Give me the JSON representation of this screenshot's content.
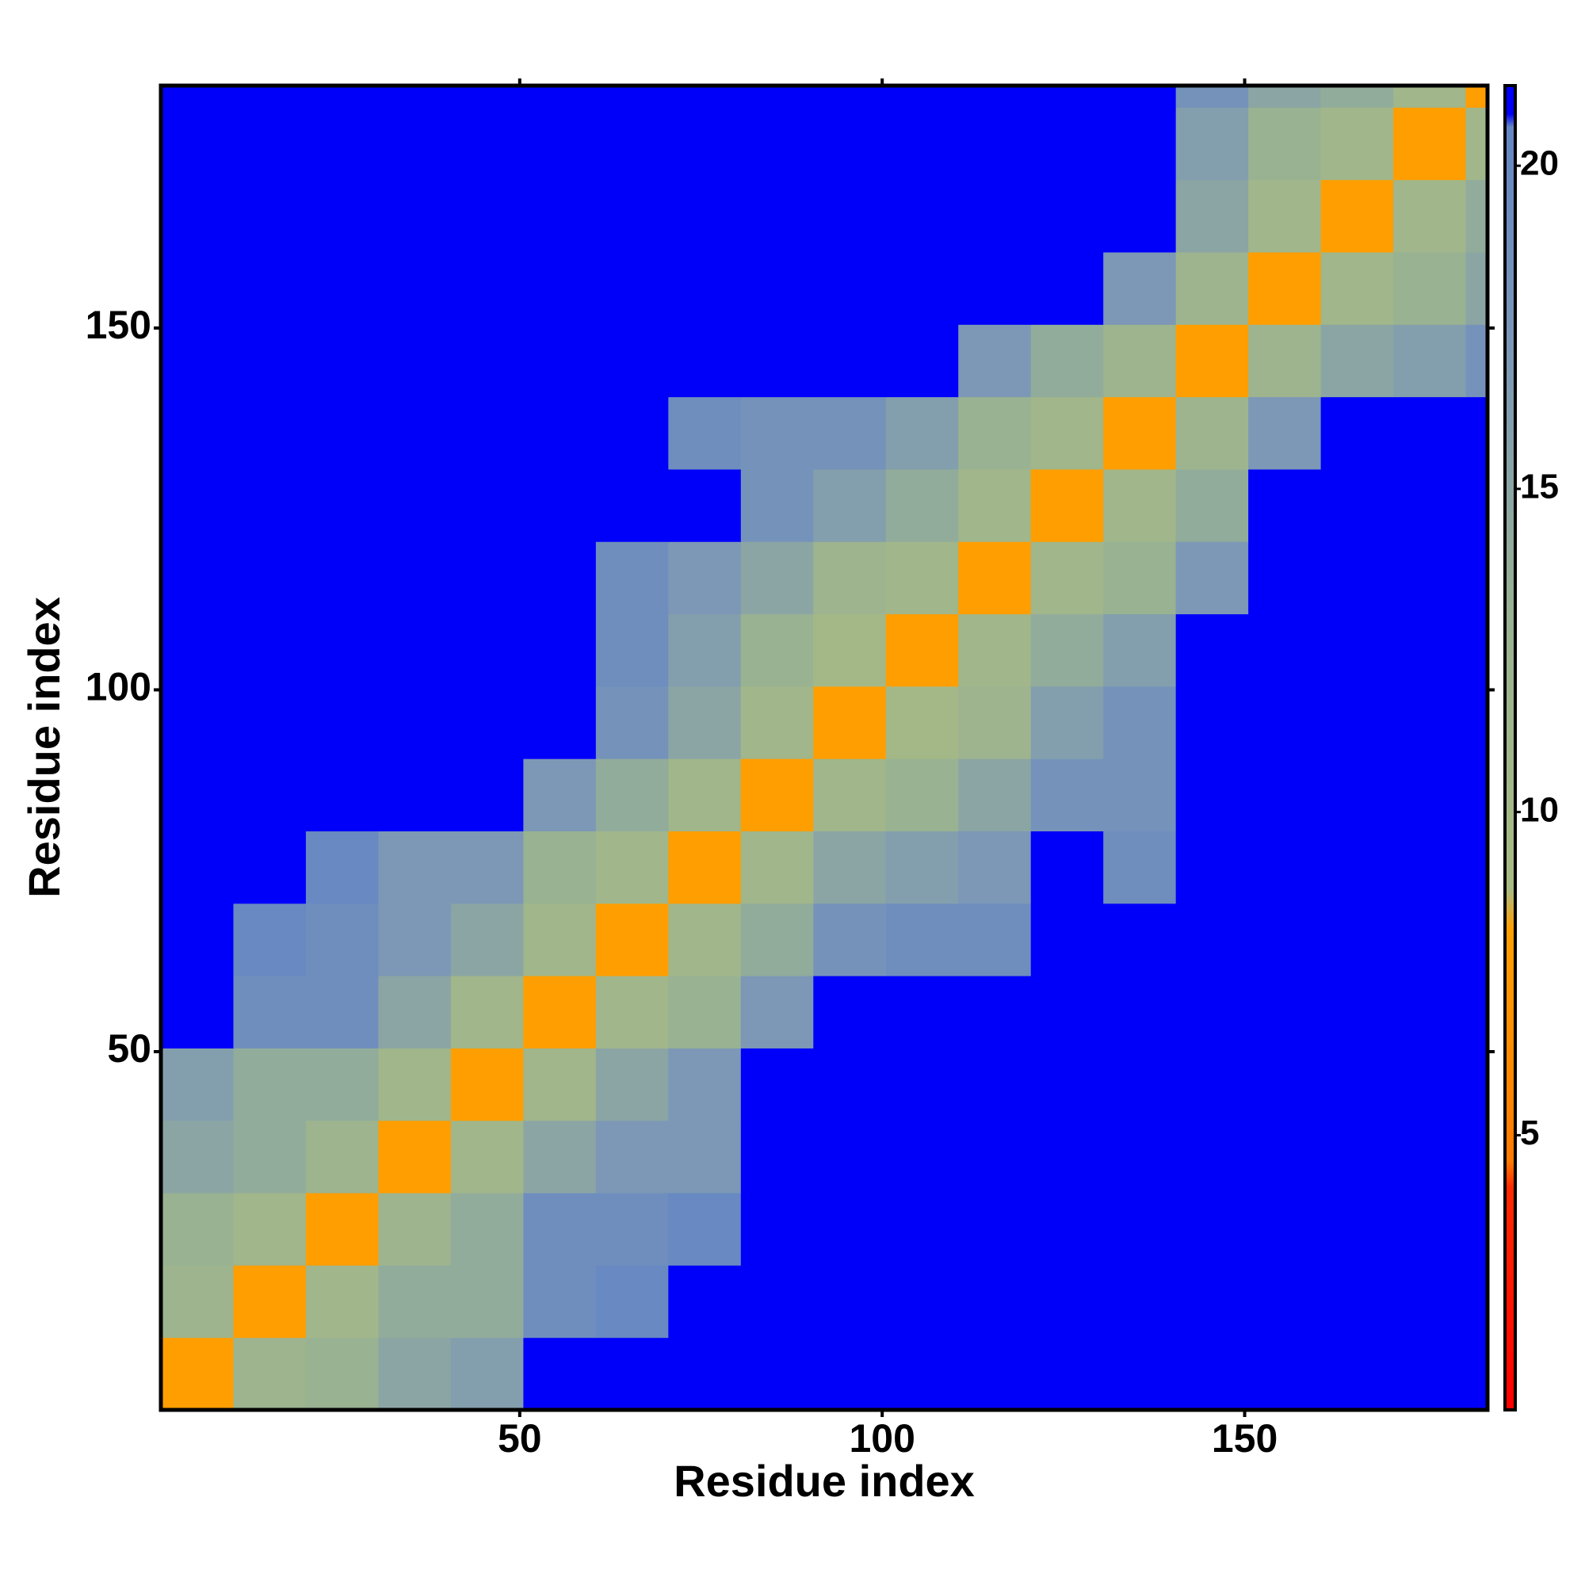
{
  "chart_data": {
    "type": "heatmap",
    "xlabel": "Residue index",
    "ylabel": "Residue index",
    "xlim": [
      0.5,
      183.5
    ],
    "ylim": [
      0.5,
      183.5
    ],
    "xticks": [
      50,
      100,
      150
    ],
    "yticks": [
      50,
      100,
      150
    ],
    "xbins": [
      0.5,
      10.5,
      20.5,
      30.5,
      40.5,
      50.5,
      60.5,
      70.5,
      80.5,
      90.5,
      100.5,
      110.5,
      120.5,
      130.5,
      140.5,
      150.5,
      160.5,
      170.5,
      180.5,
      183.5
    ],
    "ybins": [
      0.5,
      10.5,
      20.5,
      30.5,
      40.5,
      50.5,
      60.5,
      70.5,
      80.5,
      90.5,
      100.5,
      110.5,
      120.5,
      130.5,
      140.5,
      150.5,
      160.5,
      170.5,
      180.5,
      183.5
    ],
    "z": [
      [
        8,
        12,
        13,
        15,
        16,
        21,
        21,
        21,
        21,
        21,
        21,
        21,
        21,
        21,
        21,
        21,
        21,
        21,
        21
      ],
      [
        12,
        8,
        11,
        14,
        14,
        19,
        20,
        21,
        21,
        21,
        21,
        21,
        21,
        21,
        21,
        21,
        21,
        21,
        21
      ],
      [
        13,
        11,
        8,
        12,
        14,
        19,
        19,
        20,
        21,
        21,
        21,
        21,
        21,
        21,
        21,
        21,
        21,
        21,
        21
      ],
      [
        15,
        14,
        12,
        8,
        11,
        15,
        17,
        17,
        21,
        21,
        21,
        21,
        21,
        21,
        21,
        21,
        21,
        21,
        21
      ],
      [
        16,
        14,
        14,
        11,
        8,
        11,
        15,
        17,
        21,
        21,
        21,
        21,
        21,
        21,
        21,
        21,
        21,
        21,
        21
      ],
      [
        21,
        19,
        19,
        15,
        11,
        8,
        11,
        13,
        17,
        21,
        21,
        21,
        21,
        21,
        21,
        21,
        21,
        21,
        21
      ],
      [
        21,
        20,
        19,
        17,
        15,
        11,
        8,
        11,
        14,
        18,
        19,
        19,
        21,
        21,
        21,
        21,
        21,
        21,
        21
      ],
      [
        21,
        21,
        20,
        17,
        17,
        13,
        11,
        8,
        11,
        15,
        16,
        17,
        21,
        19,
        21,
        21,
        21,
        21,
        21
      ],
      [
        21,
        21,
        21,
        21,
        21,
        17,
        14,
        11,
        8,
        11,
        13,
        15,
        18,
        18,
        21,
        21,
        21,
        21,
        21
      ],
      [
        21,
        21,
        21,
        21,
        21,
        21,
        18,
        15,
        11,
        8,
        10,
        12,
        16,
        18,
        21,
        21,
        21,
        21,
        21
      ],
      [
        21,
        21,
        21,
        21,
        21,
        21,
        19,
        16,
        13,
        10,
        8,
        11,
        14,
        16,
        21,
        21,
        21,
        21,
        21
      ],
      [
        21,
        21,
        21,
        21,
        21,
        21,
        19,
        17,
        15,
        12,
        11,
        8,
        11,
        13,
        17,
        21,
        21,
        21,
        21
      ],
      [
        21,
        21,
        21,
        21,
        21,
        21,
        21,
        21,
        18,
        16,
        14,
        11,
        8,
        11,
        14,
        21,
        21,
        21,
        21
      ],
      [
        21,
        21,
        21,
        21,
        21,
        21,
        21,
        19,
        18,
        18,
        16,
        13,
        11,
        8,
        12,
        17,
        21,
        21,
        21
      ],
      [
        21,
        21,
        21,
        21,
        21,
        21,
        21,
        21,
        21,
        21,
        21,
        17,
        14,
        12,
        8,
        12,
        15,
        16,
        18
      ],
      [
        21,
        21,
        21,
        21,
        21,
        21,
        21,
        21,
        21,
        21,
        21,
        21,
        21,
        17,
        12,
        8,
        11,
        13,
        15
      ],
      [
        21,
        21,
        21,
        21,
        21,
        21,
        21,
        21,
        21,
        21,
        21,
        21,
        21,
        21,
        15,
        11,
        8,
        11,
        14
      ],
      [
        21,
        21,
        21,
        21,
        21,
        21,
        21,
        21,
        21,
        21,
        21,
        21,
        21,
        21,
        16,
        13,
        11,
        8,
        11
      ],
      [
        21,
        21,
        21,
        21,
        21,
        21,
        21,
        21,
        21,
        21,
        21,
        21,
        21,
        21,
        18,
        15,
        14,
        11,
        8
      ]
    ],
    "colorbar": {
      "zlim": [
        0.75,
        21.24
      ],
      "ticks": [
        5,
        10,
        15,
        20
      ],
      "colorscale": [
        {
          "value": 0.75,
          "color": "#ff0000"
        },
        {
          "value": 4.2,
          "color": "#ff2a00"
        },
        {
          "value": 4.6,
          "color": "#ff7a00"
        },
        {
          "value": 8.2,
          "color": "#ffa000"
        },
        {
          "value": 8.8,
          "color": "#a9bb82"
        },
        {
          "value": 13,
          "color": "#99b292"
        },
        {
          "value": 17,
          "color": "#7c98b6"
        },
        {
          "value": 20.6,
          "color": "#6486c4"
        },
        {
          "value": 20.8,
          "color": "#0000f6"
        },
        {
          "value": 21.24,
          "color": "#0000ff"
        }
      ]
    }
  }
}
